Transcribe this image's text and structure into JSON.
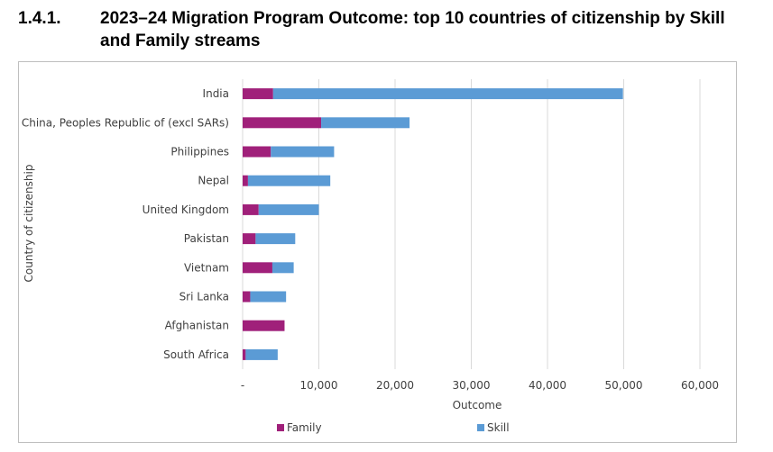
{
  "heading": {
    "number": "1.4.1.",
    "title": "2023–24 Migration Program Outcome: top 10 countries of citizenship by Skill and Family streams"
  },
  "chart_data": {
    "type": "bar",
    "orientation": "horizontal",
    "stacked": true,
    "categories": [
      "India",
      "China, Peoples Republic of (excl SARs)",
      "Philippines",
      "Nepal",
      "United Kingdom",
      "Pakistan",
      "Vietnam",
      "Sri Lanka",
      "Afghanistan",
      "South Africa"
    ],
    "series": [
      {
        "name": "Family",
        "color": "#a0207a",
        "values": [
          4000,
          10300,
          3700,
          700,
          2100,
          1700,
          3900,
          1000,
          5500,
          400
        ]
      },
      {
        "name": "Skill",
        "color": "#5b9bd5",
        "values": [
          45900,
          11600,
          8300,
          10800,
          7900,
          5200,
          2800,
          4700,
          0,
          4200
        ]
      }
    ],
    "xlabel": "Outcome",
    "ylabel": "Country of citizenship",
    "xlim": [
      0,
      60000
    ],
    "xticks": [
      0,
      10000,
      20000,
      30000,
      40000,
      50000,
      60000
    ],
    "xtick_labels": [
      "-",
      "10,000",
      "20,000",
      "30,000",
      "40,000",
      "50,000",
      "60,000"
    ],
    "grid": "vertical",
    "legend_position": "bottom"
  }
}
